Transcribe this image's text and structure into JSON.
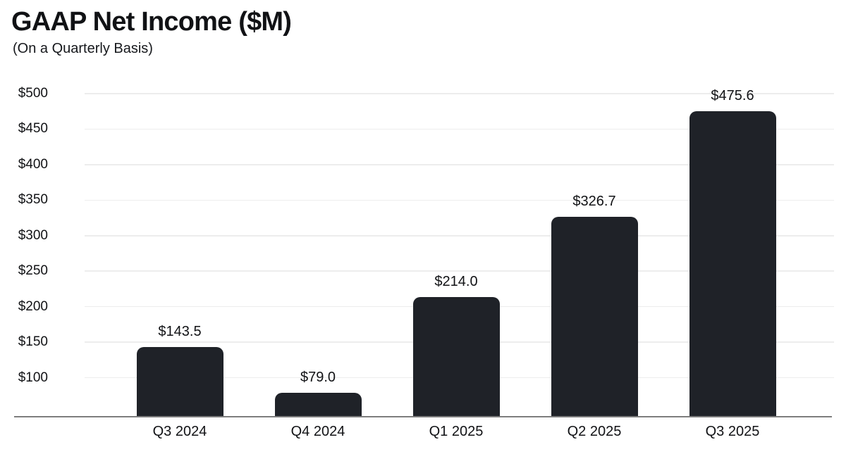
{
  "title": "GAAP Net Income ($M)",
  "subtitle": "(On a Quarterly Basis)",
  "chart_data": {
    "type": "bar",
    "title": "GAAP Net Income ($M)",
    "subtitle": "(On a Quarterly Basis)",
    "categories": [
      "Q3 2024",
      "Q4 2024",
      "Q1 2025",
      "Q2 2025",
      "Q3 2025"
    ],
    "values": [
      143.5,
      79.0,
      214.0,
      326.7,
      475.6
    ],
    "value_labels": [
      "$143.5",
      "$79.0",
      "$214.0",
      "$326.7",
      "$475.6"
    ],
    "xlabel": "",
    "ylabel": "",
    "y_ticks": [
      500,
      450,
      400,
      350,
      300,
      250,
      200,
      150,
      100
    ],
    "y_tick_labels": [
      "$500",
      "$450",
      "$400",
      "$350",
      "$300",
      "$250",
      "$200",
      "$150",
      "$100"
    ],
    "ylim": [
      45,
      500
    ],
    "grid": "horizontal-only",
    "legend": "none",
    "colors": {
      "bar": "#1f2228",
      "text": "#111215",
      "gridline": "#ededed",
      "axis_line": "#7d7d7d",
      "background": "#ffffff"
    }
  }
}
